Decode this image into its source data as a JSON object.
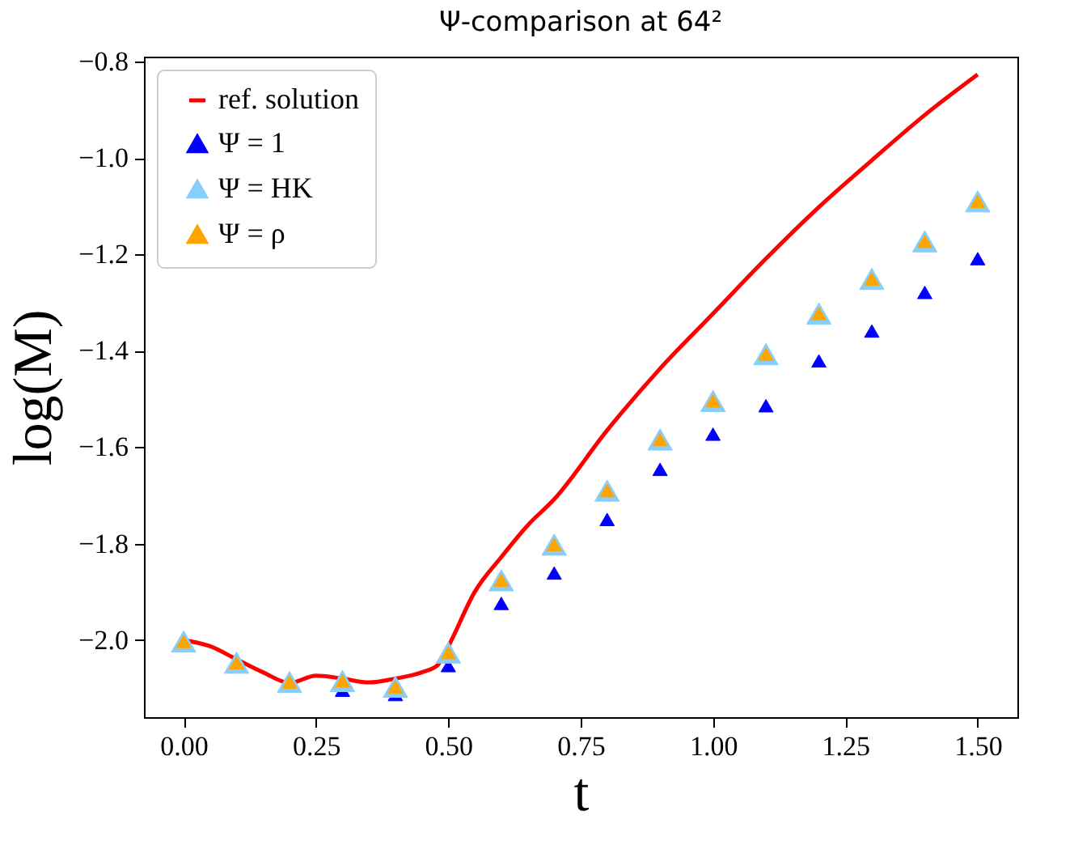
{
  "chart_data": {
    "type": "scatter",
    "title": "Ψ-comparison at 64²",
    "xlabel": "t",
    "ylabel": "log(M)",
    "xlim": [
      -0.075,
      1.575
    ],
    "ylim": [
      -2.16,
      -0.79
    ],
    "xticks": [
      {
        "value": 0,
        "label": "0.00"
      },
      {
        "value": 0.25,
        "label": "0.25"
      },
      {
        "value": 0.5,
        "label": "0.50"
      },
      {
        "value": 0.75,
        "label": "0.75"
      },
      {
        "value": 1,
        "label": "1.00"
      },
      {
        "value": 1.25,
        "label": "1.25"
      },
      {
        "value": 1.5,
        "label": "1.50"
      }
    ],
    "yticks": [
      {
        "value": -2.0,
        "label": "−2.0"
      },
      {
        "value": -1.8,
        "label": "−1.8"
      },
      {
        "value": -1.6,
        "label": "−1.6"
      },
      {
        "value": -1.4,
        "label": "−1.4"
      },
      {
        "value": -1.2,
        "label": "−1.2"
      },
      {
        "value": -1.0,
        "label": "−1.0"
      },
      {
        "value": -0.8,
        "label": "−0.8"
      }
    ],
    "x": [
      0,
      0.1,
      0.2,
      0.3,
      0.4,
      0.5,
      0.6,
      0.7,
      0.8,
      0.9,
      1.0,
      1.1,
      1.2,
      1.3,
      1.4,
      1.5
    ],
    "legend": "top left",
    "grid": false,
    "marker": "triangle",
    "series": [
      {
        "name": "ref. solution",
        "type": "line",
        "color": "#ff0000",
        "line_style": "solid",
        "marker": "none",
        "x": [
          0,
          0.05,
          0.1,
          0.15,
          0.2,
          0.25,
          0.3,
          0.35,
          0.4,
          0.45,
          0.48,
          0.5,
          0.55,
          0.6,
          0.65,
          0.7,
          0.8,
          0.9,
          1.0,
          1.1,
          1.2,
          1.3,
          1.4,
          1.5
        ],
        "values": [
          -2.0,
          -2.013,
          -2.04,
          -2.067,
          -2.089,
          -2.074,
          -2.08,
          -2.088,
          -2.08,
          -2.067,
          -2.052,
          -2.013,
          -1.9,
          -1.828,
          -1.762,
          -1.708,
          -1.565,
          -1.437,
          -1.323,
          -1.209,
          -1.102,
          -1.005,
          -0.911,
          -0.827
        ]
      },
      {
        "name": "Ψ = 1",
        "color": "#0000ff",
        "values": [
          null,
          null,
          null,
          -2.104,
          -2.113,
          -2.053,
          -1.924,
          -1.861,
          -1.75,
          -1.646,
          -1.573,
          -1.514,
          -1.421,
          -1.359,
          -1.279,
          -1.209
        ]
      },
      {
        "name": "Ψ =  HK",
        "color": "#87cefa",
        "values": [
          -2.003,
          -2.047,
          -2.087,
          -2.085,
          -2.097,
          -2.026,
          -1.876,
          -1.802,
          -1.69,
          -1.584,
          -1.504,
          -1.407,
          -1.323,
          -1.251,
          -1.173,
          -1.09
        ]
      },
      {
        "name": "Ψ = ρ",
        "color": "#ffa500",
        "values": [
          -2.003,
          -2.047,
          -2.087,
          -2.085,
          -2.097,
          -2.026,
          -1.876,
          -1.802,
          -1.69,
          -1.584,
          -1.504,
          -1.407,
          -1.323,
          -1.251,
          -1.173,
          -1.09
        ]
      }
    ]
  }
}
